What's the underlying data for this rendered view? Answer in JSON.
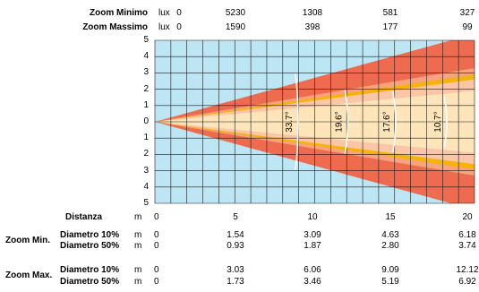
{
  "header": {
    "zoom_min_label": "Zoom Minimo",
    "zoom_max_label": "Zoom Massimo",
    "unit": "lux",
    "zoom_min_lux": [
      "0",
      "5230",
      "1308",
      "581",
      "327"
    ],
    "zoom_max_lux": [
      "0",
      "1590",
      "398",
      "177",
      "99"
    ]
  },
  "grid": {
    "y_ticks_top": [
      "5",
      "4",
      "3",
      "2",
      "1",
      "0"
    ],
    "y_ticks_bottom": [
      "1",
      "2",
      "3",
      "4",
      "5"
    ],
    "x_range": [
      0,
      20
    ],
    "y_range": [
      -5,
      5
    ]
  },
  "beam": {
    "colors": {
      "background": "#bde6f4",
      "grid_line": "#1a1a1a",
      "outer_min": "#ef6b4f",
      "inner_min": "#fbc6a6",
      "outer_max": "#f7a37e",
      "band_max": "#f6b400",
      "inner_max": "#fde5b9"
    },
    "angle_labels": [
      {
        "text": "33.7°",
        "x": 8.8
      },
      {
        "text": "19.6°",
        "x": 11.9
      },
      {
        "text": "17.6°",
        "x": 14.9
      },
      {
        "text": "10.7°",
        "x": 18.1
      }
    ]
  },
  "distance": {
    "label": "Distanza",
    "unit": "m",
    "values": [
      "0",
      "5",
      "10",
      "15",
      "20"
    ]
  },
  "zoom_min": {
    "label": "Zoom Min.",
    "d10_label": "Diametro 10%",
    "d50_label": "Diametro 50%",
    "unit": "m",
    "d10": [
      "0",
      "1.54",
      "3.09",
      "4.63",
      "6.18"
    ],
    "d50": [
      "0",
      "0.93",
      "1.87",
      "2.80",
      "3.74"
    ]
  },
  "zoom_max": {
    "label": "Zoom Max.",
    "d10_label": "Diametro 10%",
    "d50_label": "Diametro 50%",
    "unit": "m",
    "d10": [
      "0",
      "3.03",
      "6.06",
      "9.09",
      "12.12"
    ],
    "d50": [
      "0",
      "1.73",
      "3.46",
      "5.19",
      "6.92"
    ]
  }
}
